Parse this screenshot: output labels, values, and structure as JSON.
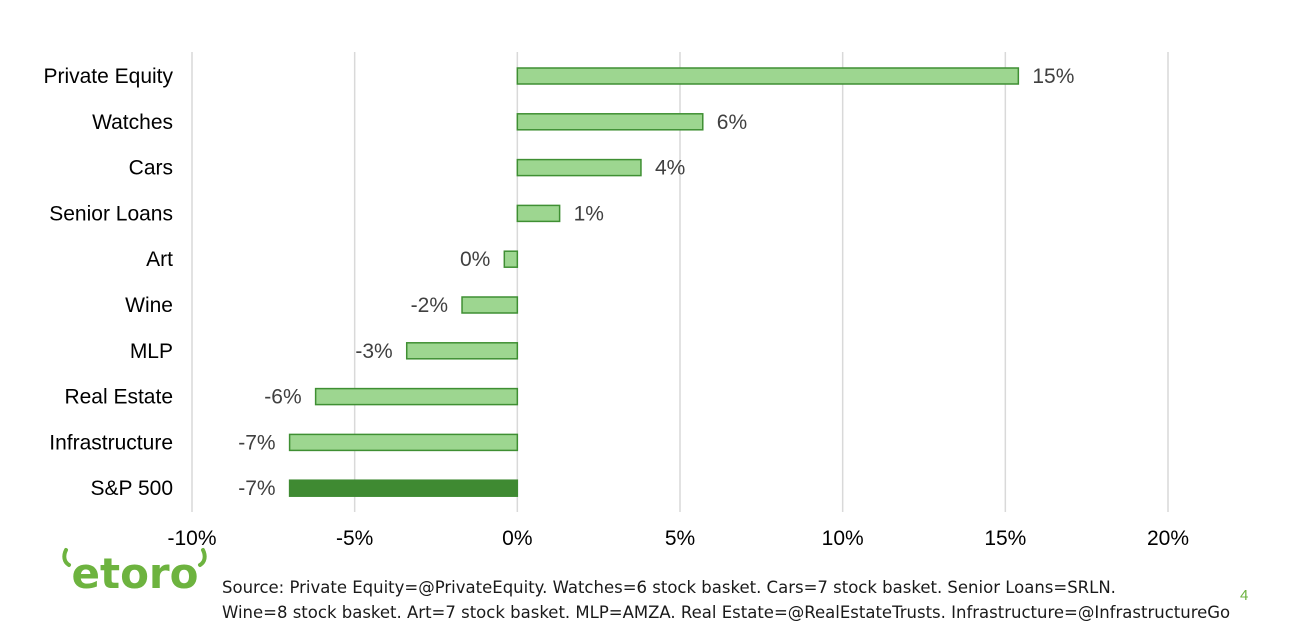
{
  "chart_data": {
    "type": "bar",
    "orientation": "horizontal",
    "categories": [
      "Private Equity",
      "Watches",
      "Cars",
      "Senior Loans",
      "Art",
      "Wine",
      "MLP",
      "Real Estate",
      "Infrastructure",
      "S&P 500"
    ],
    "values": [
      15.4,
      5.7,
      3.8,
      1.3,
      -0.4,
      -1.7,
      -3.4,
      -6.2,
      -7.0,
      -7.0
    ],
    "data_labels": [
      "15%",
      "6%",
      "4%",
      "1%",
      "0%",
      "-2%",
      "-3%",
      "-6%",
      "-7%",
      "-7%"
    ],
    "highlight": [
      false,
      false,
      false,
      false,
      false,
      false,
      false,
      false,
      false,
      true
    ],
    "xlim": [
      -10,
      20
    ],
    "xticks": [
      -10,
      -5,
      0,
      5,
      10,
      15,
      20
    ],
    "xtick_labels": [
      "-10%",
      "-5%",
      "0%",
      "5%",
      "10%",
      "15%",
      "20%"
    ],
    "grid": "vertical",
    "colors": {
      "bar": "#9dd690",
      "bar_border": "#3f8f33",
      "highlight": "#3f8a32"
    }
  },
  "logo": {
    "text": "etoro",
    "color": "#6db33f"
  },
  "footer": {
    "source_line1": "Source: Private Equity=@PrivateEquity. Watches=6 stock basket. Cars=7 stock basket. Senior Loans=SRLN.",
    "source_line2": "Wine=8 stock basket. Art=7 stock basket. MLP=AMZA. Real Estate=@RealEstateTrusts. Infrastructure=@InfrastructureGo",
    "page_number": "4"
  }
}
